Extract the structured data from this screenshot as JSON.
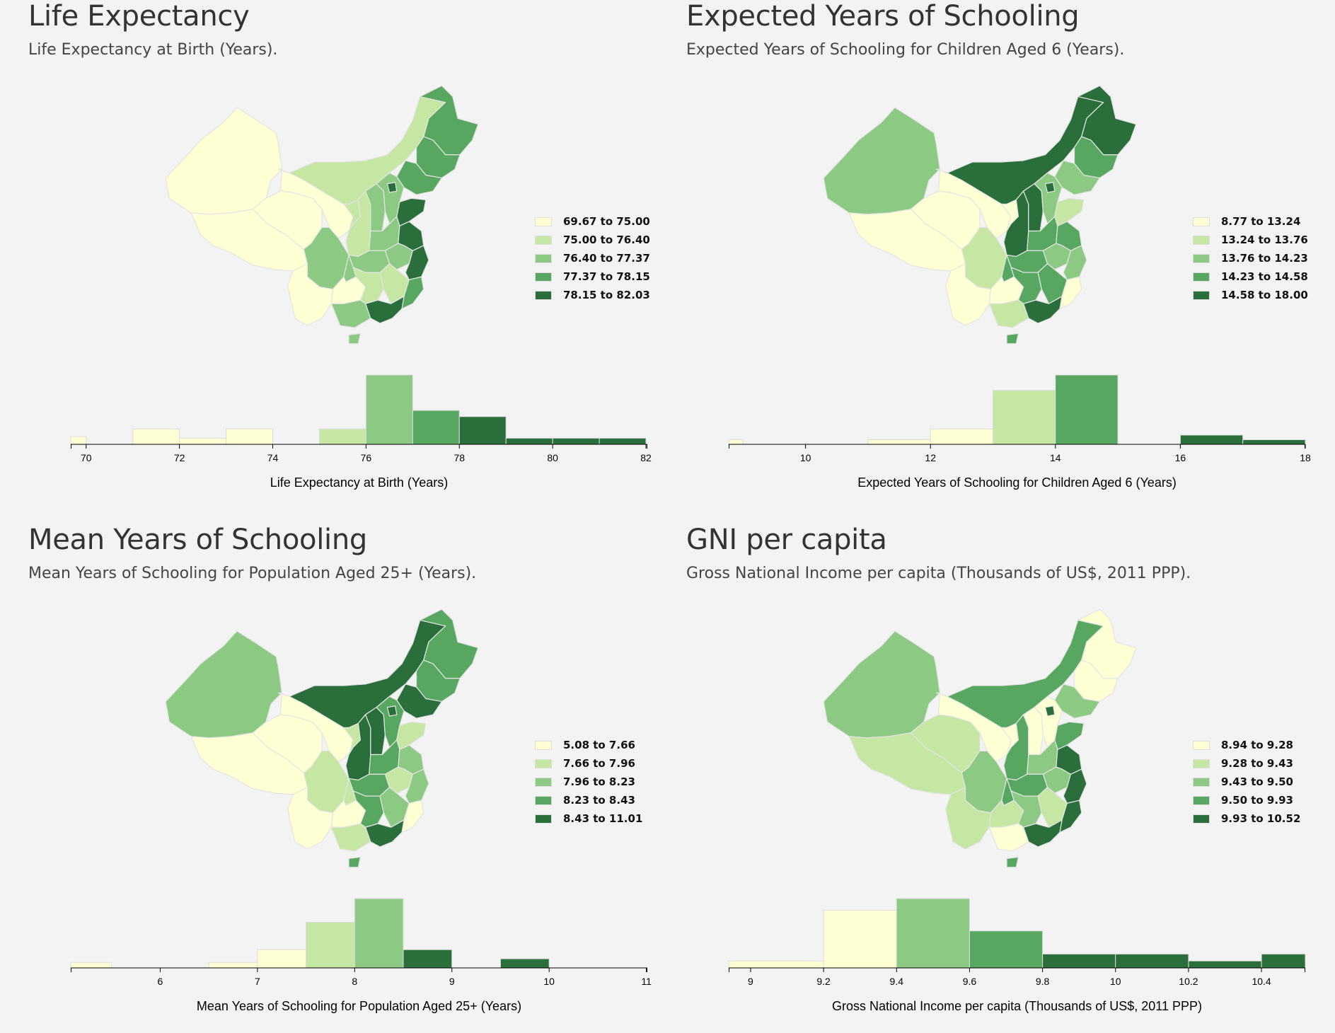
{
  "palette": [
    "#ffffd4",
    "#c6e6a4",
    "#8cc983",
    "#58a760",
    "#2a6e3b"
  ],
  "chart_data": [
    {
      "type": "bar",
      "title": "Life Expectancy",
      "subtitle": "Life Expectancy at Birth (Years).",
      "xlabel": "Life Expectancy at Birth (Years)",
      "xlim": [
        69.67,
        82.03
      ],
      "ticks": [
        "70",
        "72",
        "74",
        "76",
        "78",
        "80",
        "82"
      ],
      "bins": [
        {
          "x0": 69.67,
          "x1": 70,
          "count": 0.5,
          "cls": 0
        },
        {
          "x0": 71,
          "x1": 72,
          "count": 1,
          "cls": 0
        },
        {
          "x0": 72,
          "x1": 73,
          "count": 0.4,
          "cls": 0
        },
        {
          "x0": 73,
          "x1": 74,
          "count": 1,
          "cls": 0
        },
        {
          "x0": 75,
          "x1": 76,
          "count": 1,
          "cls": 1
        },
        {
          "x0": 76,
          "x1": 77,
          "count": 4.5,
          "cls": 2
        },
        {
          "x0": 77,
          "x1": 78,
          "count": 2.2,
          "cls": 3
        },
        {
          "x0": 78,
          "x1": 79,
          "count": 1.8,
          "cls": 4
        },
        {
          "x0": 79,
          "x1": 80,
          "count": 0.4,
          "cls": 4
        },
        {
          "x0": 80,
          "x1": 81,
          "count": 0.4,
          "cls": 4
        },
        {
          "x0": 81,
          "x1": 82,
          "count": 0.4,
          "cls": 4
        }
      ],
      "legend": [
        "69.67 to 75.00",
        "75.00 to 76.40",
        "76.40 to 77.37",
        "77.37 to 78.15",
        "78.15 to 82.03"
      ],
      "map_classes": {
        "xinjiang": 0,
        "tibet": 0,
        "qinghai": 0,
        "gansu": 0,
        "inner_mongolia": 1,
        "heilongjiang": 3,
        "jilin": 3,
        "liaoning": 3,
        "ningxia": 1,
        "shaanxi": 1,
        "shanxi": 2,
        "hebei": 2,
        "beijing": 4,
        "shandong": 4,
        "henan": 2,
        "jiangsu": 4,
        "sichuan": 2,
        "chongqing": 2,
        "hubei": 2,
        "anhui": 2,
        "zhejiang": 4,
        "yunnan": 0,
        "guizhou": 0,
        "hunan": 1,
        "jiangxi": 1,
        "fujian": 3,
        "guangxi": 2,
        "guangdong": 4,
        "hainan": 2
      }
    },
    {
      "type": "bar",
      "title": "Expected Years of Schooling",
      "subtitle": "Expected Years of Schooling for Children Aged 6 (Years).",
      "xlabel": "Expected Years of Schooling for Children Aged 6 (Years)",
      "xlim": [
        8.77,
        18
      ],
      "ticks": [
        "10",
        "12",
        "14",
        "16",
        "18"
      ],
      "bins": [
        {
          "x0": 8.77,
          "x1": 9,
          "count": 0.3,
          "cls": 0
        },
        {
          "x0": 11,
          "x1": 12,
          "count": 0.3,
          "cls": 0
        },
        {
          "x0": 12,
          "x1": 13,
          "count": 1,
          "cls": 0
        },
        {
          "x0": 13,
          "x1": 14,
          "count": 3.5,
          "cls": 1
        },
        {
          "x0": 14,
          "x1": 15,
          "count": 4.5,
          "cls": 3
        },
        {
          "x0": 16,
          "x1": 17,
          "count": 0.6,
          "cls": 4
        },
        {
          "x0": 17,
          "x1": 18,
          "count": 0.3,
          "cls": 4
        }
      ],
      "legend": [
        "8.77 to 13.24",
        "13.24 to 13.76",
        "13.76 to 14.23",
        "14.23 to 14.58",
        "14.58 to 18.00"
      ],
      "map_classes": {
        "xinjiang": 2,
        "tibet": 0,
        "qinghai": 0,
        "gansu": 0,
        "inner_mongolia": 4,
        "heilongjiang": 4,
        "jilin": 3,
        "liaoning": 2,
        "ningxia": 0,
        "shaanxi": 4,
        "shanxi": 4,
        "hebei": 2,
        "beijing": 4,
        "shandong": 1,
        "henan": 3,
        "jiangsu": 3,
        "sichuan": 1,
        "chongqing": 3,
        "hubei": 3,
        "anhui": 2,
        "zhejiang": 2,
        "yunnan": 0,
        "guizhou": 0,
        "hunan": 3,
        "jiangxi": 3,
        "fujian": 0,
        "guangxi": 1,
        "guangdong": 4,
        "hainan": 3
      }
    },
    {
      "type": "bar",
      "title": "Mean Years of Schooling",
      "subtitle": "Mean Years of Schooling for Population Aged 25+ (Years).",
      "xlabel": "Mean Years of Schooling for Population Aged 25+ (Years)",
      "xlim": [
        5.08,
        11.01
      ],
      "ticks": [
        "6",
        "7",
        "8",
        "9",
        "10",
        "11"
      ],
      "bins": [
        {
          "x0": 5.08,
          "x1": 5.5,
          "count": 0.3,
          "cls": 0
        },
        {
          "x0": 6.5,
          "x1": 7,
          "count": 0.3,
          "cls": 0
        },
        {
          "x0": 7,
          "x1": 7.5,
          "count": 1,
          "cls": 0
        },
        {
          "x0": 7.5,
          "x1": 8,
          "count": 2.5,
          "cls": 1
        },
        {
          "x0": 8,
          "x1": 8.5,
          "count": 3.8,
          "cls": 2
        },
        {
          "x0": 8.5,
          "x1": 9,
          "count": 1,
          "cls": 4
        },
        {
          "x0": 9.5,
          "x1": 10,
          "count": 0.5,
          "cls": 4
        }
      ],
      "legend": [
        "5.08 to 7.66",
        "7.66 to 7.96",
        "7.96 to 8.23",
        "8.23 to 8.43",
        "8.43 to 11.01"
      ],
      "map_classes": {
        "xinjiang": 2,
        "tibet": 0,
        "qinghai": 0,
        "gansu": 0,
        "inner_mongolia": 4,
        "heilongjiang": 3,
        "jilin": 3,
        "liaoning": 4,
        "ningxia": 1,
        "shaanxi": 4,
        "shanxi": 4,
        "hebei": 3,
        "beijing": 4,
        "shandong": 1,
        "henan": 3,
        "jiangsu": 2,
        "sichuan": 1,
        "chongqing": 1,
        "hubei": 3,
        "anhui": 1,
        "zhejiang": 2,
        "yunnan": 0,
        "guizhou": 0,
        "hunan": 3,
        "jiangxi": 2,
        "fujian": 0,
        "guangxi": 1,
        "guangdong": 4,
        "hainan": 3
      }
    },
    {
      "type": "bar",
      "title": "GNI per capita",
      "subtitle": "Gross National Income per capita (Thousands of US$, 2011 PPP).",
      "xlabel": "Gross National Income per capita (Thousands of US$, 2011 PPP)",
      "xlim": [
        8.94,
        10.52
      ],
      "ticks": [
        "9",
        "9.2",
        "9.4",
        "9.6",
        "9.8",
        "10",
        "10.2",
        "10.4"
      ],
      "bins": [
        {
          "x0": 8.94,
          "x1": 9.2,
          "count": 0.3,
          "cls": 0
        },
        {
          "x0": 9.2,
          "x1": 9.4,
          "count": 2.5,
          "cls": 0
        },
        {
          "x0": 9.4,
          "x1": 9.6,
          "count": 3.0,
          "cls": 2
        },
        {
          "x0": 9.6,
          "x1": 9.8,
          "count": 1.6,
          "cls": 3
        },
        {
          "x0": 9.8,
          "x1": 10,
          "count": 0.6,
          "cls": 4
        },
        {
          "x0": 10,
          "x1": 10.2,
          "count": 0.6,
          "cls": 4
        },
        {
          "x0": 10.2,
          "x1": 10.4,
          "count": 0.3,
          "cls": 4
        },
        {
          "x0": 10.4,
          "x1": 10.52,
          "count": 0.6,
          "cls": 4
        }
      ],
      "legend": [
        "8.94 to 9.28",
        "9.28 to 9.43",
        "9.43 to 9.50",
        "9.50 to 9.93",
        "9.93 to 10.52"
      ],
      "map_classes": {
        "xinjiang": 2,
        "tibet": 1,
        "qinghai": 1,
        "gansu": 0,
        "inner_mongolia": 3,
        "heilongjiang": 0,
        "jilin": 0,
        "liaoning": 2,
        "ningxia": 0,
        "shaanxi": 3,
        "shanxi": 0,
        "hebei": 0,
        "beijing": 4,
        "shandong": 3,
        "henan": 2,
        "jiangsu": 4,
        "sichuan": 2,
        "chongqing": 3,
        "hubei": 3,
        "anhui": 2,
        "zhejiang": 4,
        "yunnan": 1,
        "guizhou": 1,
        "hunan": 2,
        "jiangxi": 1,
        "fujian": 4,
        "guangxi": 0,
        "guangdong": 4,
        "hainan": 3
      }
    }
  ]
}
